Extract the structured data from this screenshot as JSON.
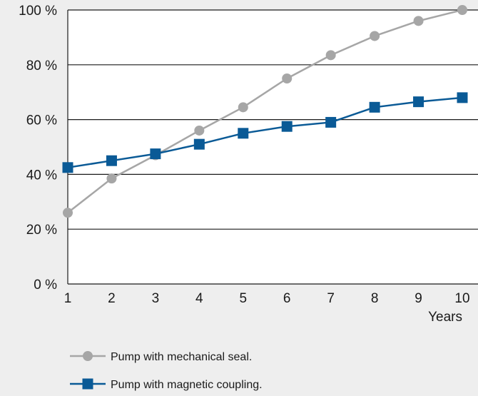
{
  "chart_data": {
    "type": "line",
    "title": "",
    "xlabel": "Years",
    "ylabel": "",
    "x": [
      1,
      2,
      3,
      4,
      5,
      6,
      7,
      8,
      9,
      10
    ],
    "xlim": [
      1,
      10
    ],
    "ylim": [
      0,
      100
    ],
    "y_ticks": [
      0,
      20,
      40,
      60,
      80,
      100
    ],
    "y_tick_labels": [
      "0 %",
      "20 %",
      "40 %",
      "60 %",
      "80 %",
      "100 %"
    ],
    "x_tick_labels": [
      "1",
      "2",
      "3",
      "4",
      "5",
      "6",
      "7",
      "8",
      "9",
      "10"
    ],
    "grid": "horizontal",
    "legend_position": "bottom-left",
    "series": [
      {
        "name": "Pump with mechanical seal.",
        "marker": "circle",
        "color": "#a6a6a6",
        "values": [
          26,
          38.5,
          47,
          56,
          64.5,
          75,
          83.5,
          90.5,
          96,
          100
        ]
      },
      {
        "name": "Pump with magnetic coupling.",
        "marker": "square",
        "color": "#0a5a96",
        "values": [
          42.5,
          45,
          47.5,
          51,
          55,
          57.5,
          59,
          64.5,
          66.5,
          68
        ]
      }
    ]
  }
}
